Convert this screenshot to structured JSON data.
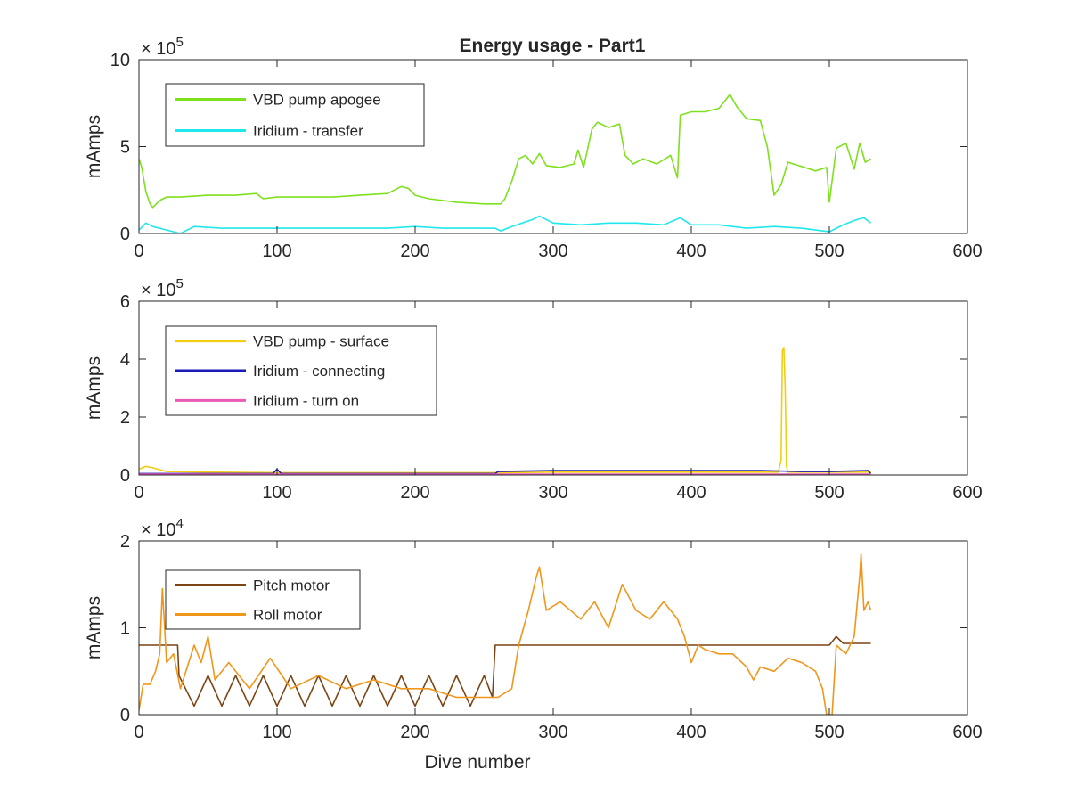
{
  "figure": {
    "title": "Energy usage - Part1"
  },
  "chart_data": [
    {
      "type": "line",
      "xlabel": "",
      "ylabel": "mAmps",
      "xlim": [
        0,
        600
      ],
      "ylim": [
        0,
        10
      ],
      "x_ticks": [
        "0",
        "100",
        "200",
        "300",
        "400",
        "500",
        "600"
      ],
      "y_ticks": [
        "0",
        "5",
        "10"
      ],
      "y_exponent_base": "× 10",
      "y_exponent": "5",
      "legend_position": "top-left",
      "grid": false,
      "series": [
        {
          "name": "VBD pump apogee",
          "color": "#7fe01f",
          "points": [
            [
              0,
              4.3
            ],
            [
              2,
              3.8
            ],
            [
              5,
              2.4
            ],
            [
              8,
              1.7
            ],
            [
              10,
              1.5
            ],
            [
              15,
              1.9
            ],
            [
              20,
              2.1
            ],
            [
              30,
              2.1
            ],
            [
              50,
              2.2
            ],
            [
              70,
              2.2
            ],
            [
              85,
              2.3
            ],
            [
              90,
              2.0
            ],
            [
              100,
              2.1
            ],
            [
              120,
              2.1
            ],
            [
              140,
              2.1
            ],
            [
              160,
              2.2
            ],
            [
              180,
              2.3
            ],
            [
              190,
              2.7
            ],
            [
              195,
              2.6
            ],
            [
              200,
              2.2
            ],
            [
              210,
              2.0
            ],
            [
              230,
              1.8
            ],
            [
              250,
              1.7
            ],
            [
              262,
              1.7
            ],
            [
              265,
              2.0
            ],
            [
              270,
              3.0
            ],
            [
              275,
              4.3
            ],
            [
              280,
              4.5
            ],
            [
              285,
              4.0
            ],
            [
              290,
              4.6
            ],
            [
              295,
              3.9
            ],
            [
              305,
              3.8
            ],
            [
              315,
              4.0
            ],
            [
              318,
              4.8
            ],
            [
              322,
              3.8
            ],
            [
              325,
              4.9
            ],
            [
              328,
              6.0
            ],
            [
              332,
              6.4
            ],
            [
              340,
              6.1
            ],
            [
              348,
              6.3
            ],
            [
              352,
              4.5
            ],
            [
              358,
              4.0
            ],
            [
              365,
              4.3
            ],
            [
              375,
              4.0
            ],
            [
              385,
              4.5
            ],
            [
              390,
              3.2
            ],
            [
              392,
              6.8
            ],
            [
              400,
              7.0
            ],
            [
              410,
              7.0
            ],
            [
              420,
              7.2
            ],
            [
              428,
              8.0
            ],
            [
              433,
              7.3
            ],
            [
              440,
              6.6
            ],
            [
              450,
              6.5
            ],
            [
              455,
              5.0
            ],
            [
              460,
              2.2
            ],
            [
              465,
              2.8
            ],
            [
              470,
              4.1
            ],
            [
              478,
              3.9
            ],
            [
              490,
              3.6
            ],
            [
              498,
              3.8
            ],
            [
              500,
              1.8
            ],
            [
              505,
              4.9
            ],
            [
              512,
              5.2
            ],
            [
              518,
              3.7
            ],
            [
              522,
              5.2
            ],
            [
              526,
              4.1
            ],
            [
              530,
              4.3
            ]
          ]
        },
        {
          "name": "Iridium - transfer",
          "color": "#1fe8ec",
          "points": [
            [
              0,
              0.2
            ],
            [
              5,
              0.6
            ],
            [
              10,
              0.4
            ],
            [
              20,
              0.2
            ],
            [
              30,
              0.0
            ],
            [
              40,
              0.4
            ],
            [
              60,
              0.3
            ],
            [
              80,
              0.3
            ],
            [
              100,
              0.3
            ],
            [
              120,
              0.3
            ],
            [
              140,
              0.3
            ],
            [
              160,
              0.3
            ],
            [
              180,
              0.3
            ],
            [
              200,
              0.4
            ],
            [
              220,
              0.3
            ],
            [
              240,
              0.3
            ],
            [
              258,
              0.3
            ],
            [
              262,
              0.15
            ],
            [
              270,
              0.4
            ],
            [
              285,
              0.8
            ],
            [
              290,
              1.0
            ],
            [
              300,
              0.6
            ],
            [
              320,
              0.5
            ],
            [
              340,
              0.6
            ],
            [
              360,
              0.6
            ],
            [
              380,
              0.5
            ],
            [
              392,
              0.9
            ],
            [
              400,
              0.5
            ],
            [
              420,
              0.5
            ],
            [
              440,
              0.3
            ],
            [
              460,
              0.4
            ],
            [
              480,
              0.3
            ],
            [
              500,
              0.1
            ],
            [
              510,
              0.5
            ],
            [
              520,
              0.8
            ],
            [
              525,
              0.9
            ],
            [
              530,
              0.6
            ]
          ]
        }
      ]
    },
    {
      "type": "line",
      "xlabel": "",
      "ylabel": "mAmps",
      "xlim": [
        0,
        600
      ],
      "ylim": [
        0,
        6
      ],
      "x_ticks": [
        "0",
        "100",
        "200",
        "300",
        "400",
        "500",
        "600"
      ],
      "y_ticks": [
        "0",
        "2",
        "4",
        "6"
      ],
      "y_exponent_base": "× 10",
      "y_exponent": "5",
      "legend_position": "top-left",
      "grid": false,
      "series": [
        {
          "name": "VBD pump - surface",
          "color": "#f2cd12",
          "points": [
            [
              0,
              0.2
            ],
            [
              5,
              0.3
            ],
            [
              10,
              0.25
            ],
            [
              20,
              0.12
            ],
            [
              50,
              0.1
            ],
            [
              100,
              0.08
            ],
            [
              150,
              0.08
            ],
            [
              200,
              0.08
            ],
            [
              258,
              0.08
            ],
            [
              300,
              0.1
            ],
            [
              350,
              0.1
            ],
            [
              400,
              0.1
            ],
            [
              450,
              0.1
            ],
            [
              463,
              0.1
            ],
            [
              465,
              0.5
            ],
            [
              466,
              4.3
            ],
            [
              467,
              4.4
            ],
            [
              468,
              3.0
            ],
            [
              469,
              0.3
            ],
            [
              470,
              0.1
            ],
            [
              500,
              0.1
            ],
            [
              530,
              0.1
            ]
          ]
        },
        {
          "name": "Iridium - connecting",
          "color": "#1a1ab8",
          "points": [
            [
              0,
              0.05
            ],
            [
              50,
              0.05
            ],
            [
              97,
              0.05
            ],
            [
              100,
              0.2
            ],
            [
              103,
              0.05
            ],
            [
              150,
              0.05
            ],
            [
              200,
              0.05
            ],
            [
              258,
              0.05
            ],
            [
              260,
              0.12
            ],
            [
              300,
              0.15
            ],
            [
              330,
              0.15
            ],
            [
              350,
              0.15
            ],
            [
              400,
              0.15
            ],
            [
              450,
              0.15
            ],
            [
              480,
              0.12
            ],
            [
              500,
              0.12
            ],
            [
              528,
              0.15
            ],
            [
              530,
              0.05
            ]
          ]
        },
        {
          "name": "Iridium - turn on",
          "color": "#e85ab4",
          "points": [
            [
              0,
              0.03
            ],
            [
              100,
              0.03
            ],
            [
              200,
              0.03
            ],
            [
              300,
              0.03
            ],
            [
              400,
              0.03
            ],
            [
              500,
              0.03
            ],
            [
              530,
              0.03
            ]
          ]
        }
      ]
    },
    {
      "type": "line",
      "xlabel": "Dive number",
      "ylabel": "mAmps",
      "xlim": [
        0,
        600
      ],
      "ylim": [
        0,
        2
      ],
      "x_ticks": [
        "0",
        "100",
        "200",
        "300",
        "400",
        "500",
        "600"
      ],
      "y_ticks": [
        "0",
        "1",
        "2"
      ],
      "y_exponent_base": "× 10",
      "y_exponent": "4",
      "legend_position": "top-left",
      "grid": false,
      "series": [
        {
          "name": "Pitch motor",
          "color": "#7b4514",
          "points": [
            [
              0,
              0.8
            ],
            [
              28,
              0.8
            ],
            [
              29,
              0.45
            ],
            [
              40,
              0.1
            ],
            [
              50,
              0.45
            ],
            [
              60,
              0.1
            ],
            [
              70,
              0.45
            ],
            [
              80,
              0.1
            ],
            [
              90,
              0.45
            ],
            [
              100,
              0.1
            ],
            [
              110,
              0.45
            ],
            [
              120,
              0.1
            ],
            [
              130,
              0.45
            ],
            [
              140,
              0.1
            ],
            [
              150,
              0.45
            ],
            [
              160,
              0.1
            ],
            [
              170,
              0.45
            ],
            [
              180,
              0.1
            ],
            [
              190,
              0.45
            ],
            [
              200,
              0.1
            ],
            [
              210,
              0.45
            ],
            [
              220,
              0.1
            ],
            [
              230,
              0.45
            ],
            [
              240,
              0.1
            ],
            [
              250,
              0.45
            ],
            [
              256,
              0.2
            ],
            [
              258,
              0.8
            ],
            [
              300,
              0.8
            ],
            [
              400,
              0.8
            ],
            [
              450,
              0.8
            ],
            [
              500,
              0.8
            ],
            [
              505,
              0.9
            ],
            [
              510,
              0.82
            ],
            [
              530,
              0.82
            ]
          ]
        },
        {
          "name": "Roll motor",
          "color": "#f0961a",
          "points": [
            [
              0,
              0.05
            ],
            [
              3,
              0.35
            ],
            [
              8,
              0.35
            ],
            [
              12,
              0.5
            ],
            [
              15,
              0.7
            ],
            [
              17,
              1.45
            ],
            [
              20,
              0.6
            ],
            [
              25,
              0.7
            ],
            [
              30,
              0.3
            ],
            [
              40,
              0.8
            ],
            [
              45,
              0.6
            ],
            [
              50,
              0.9
            ],
            [
              55,
              0.4
            ],
            [
              65,
              0.6
            ],
            [
              80,
              0.3
            ],
            [
              95,
              0.65
            ],
            [
              110,
              0.3
            ],
            [
              130,
              0.45
            ],
            [
              150,
              0.3
            ],
            [
              170,
              0.4
            ],
            [
              190,
              0.3
            ],
            [
              210,
              0.3
            ],
            [
              230,
              0.2
            ],
            [
              250,
              0.2
            ],
            [
              260,
              0.2
            ],
            [
              270,
              0.3
            ],
            [
              275,
              0.8
            ],
            [
              282,
              1.2
            ],
            [
              288,
              1.6
            ],
            [
              290,
              1.7
            ],
            [
              295,
              1.2
            ],
            [
              305,
              1.3
            ],
            [
              320,
              1.1
            ],
            [
              330,
              1.3
            ],
            [
              340,
              1.0
            ],
            [
              350,
              1.5
            ],
            [
              360,
              1.2
            ],
            [
              370,
              1.1
            ],
            [
              380,
              1.3
            ],
            [
              390,
              1.1
            ],
            [
              395,
              0.9
            ],
            [
              400,
              0.6
            ],
            [
              405,
              0.8
            ],
            [
              410,
              0.75
            ],
            [
              420,
              0.7
            ],
            [
              430,
              0.7
            ],
            [
              440,
              0.55
            ],
            [
              445,
              0.4
            ],
            [
              450,
              0.55
            ],
            [
              460,
              0.5
            ],
            [
              470,
              0.65
            ],
            [
              480,
              0.6
            ],
            [
              490,
              0.5
            ],
            [
              495,
              0.3
            ],
            [
              498,
              0.0
            ],
            [
              502,
              0.0
            ],
            [
              505,
              0.8
            ],
            [
              512,
              0.7
            ],
            [
              518,
              0.9
            ],
            [
              522,
              1.6
            ],
            [
              523,
              1.85
            ],
            [
              525,
              1.2
            ],
            [
              528,
              1.3
            ],
            [
              530,
              1.2
            ]
          ]
        }
      ]
    }
  ]
}
